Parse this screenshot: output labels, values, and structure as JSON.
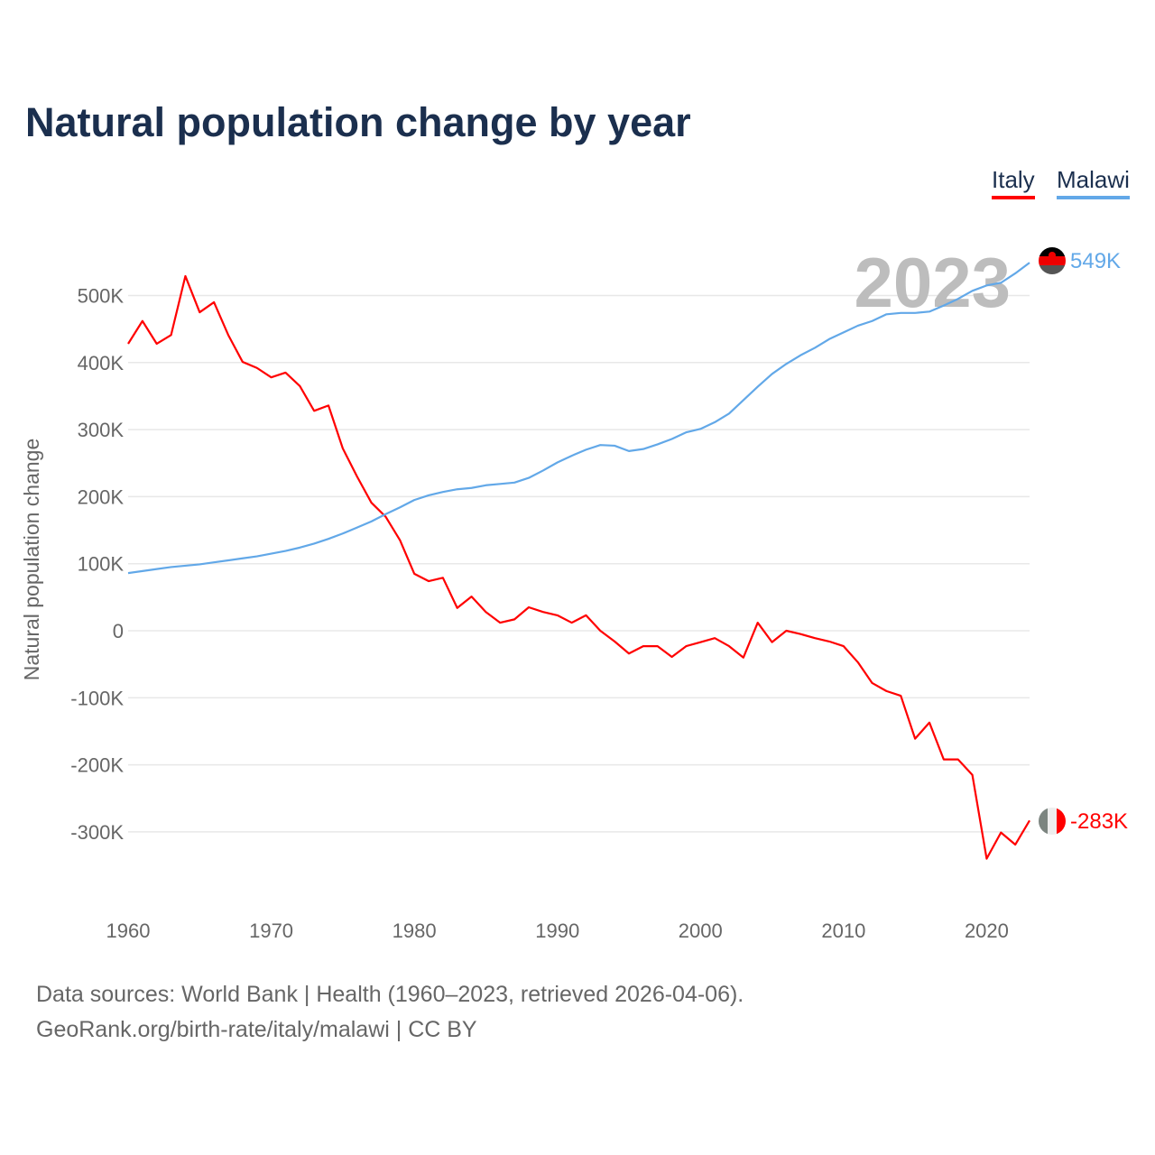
{
  "title": "Natural population change by year",
  "legend": [
    {
      "label": "Italy",
      "color": "#ff0000"
    },
    {
      "label": "Malawi",
      "color": "#62a8e8"
    }
  ],
  "year_label": "2023",
  "end_labels": {
    "italy": "-283K",
    "malawi": "549K"
  },
  "footer": {
    "line1": "Data sources: World Bank | Health (1960–2023, retrieved 2026-04-06).",
    "line2": "GeoRank.org/birth-rate/italy/malawi | CC BY"
  },
  "chart_data": {
    "type": "line",
    "title": "Natural population change by year",
    "xlabel": "",
    "ylabel": "Natural population change",
    "xlim": [
      1960,
      2023
    ],
    "ylim": [
      -380000,
      560000
    ],
    "x_ticks": [
      1960,
      1970,
      1980,
      1990,
      2000,
      2010,
      2020
    ],
    "y_ticks": [
      {
        "v": 500000,
        "label": "500K"
      },
      {
        "v": 400000,
        "label": "400K"
      },
      {
        "v": 300000,
        "label": "300K"
      },
      {
        "v": 200000,
        "label": "200K"
      },
      {
        "v": 100000,
        "label": "100K"
      },
      {
        "v": 0,
        "label": "0"
      },
      {
        "v": -100000,
        "label": "-100K"
      },
      {
        "v": -200000,
        "label": "-200K"
      },
      {
        "v": -300000,
        "label": "-300K"
      }
    ],
    "grid": true,
    "legend_position": "top-right",
    "x_start": 1960,
    "series": [
      {
        "name": "Italy",
        "color": "#ff0000",
        "values": [
          428,
          462,
          428,
          441,
          529,
          475,
          490,
          441,
          401,
          392,
          378,
          385,
          365,
          328,
          336,
          272,
          230,
          191,
          170,
          135,
          85,
          74,
          79,
          34,
          51,
          28,
          12,
          17,
          35,
          28,
          23,
          12,
          23,
          0,
          -16,
          -34,
          -23,
          -23,
          -39,
          -23,
          -17,
          -11,
          -23,
          -40,
          12,
          -17,
          0,
          -5,
          -11,
          -16,
          -23,
          -47,
          -78,
          -90,
          -97,
          -161,
          -137,
          -192,
          -192,
          -215,
          -340,
          -301,
          -319,
          -283
        ]
      },
      {
        "name": "Malawi",
        "color": "#62a8e8",
        "values": [
          86,
          89,
          92,
          95,
          97,
          99,
          102,
          105,
          108,
          111,
          115,
          119,
          124,
          130,
          137,
          145,
          154,
          163,
          174,
          184,
          195,
          202,
          207,
          211,
          213,
          217,
          219,
          221,
          228,
          239,
          251,
          261,
          270,
          277,
          276,
          268,
          271,
          278,
          286,
          296,
          301,
          311,
          324,
          344,
          364,
          383,
          398,
          411,
          422,
          435,
          445,
          455,
          462,
          472,
          474,
          474,
          476,
          485,
          495,
          507,
          515,
          519,
          533,
          549
        ]
      }
    ],
    "value_unit": "thousands"
  }
}
